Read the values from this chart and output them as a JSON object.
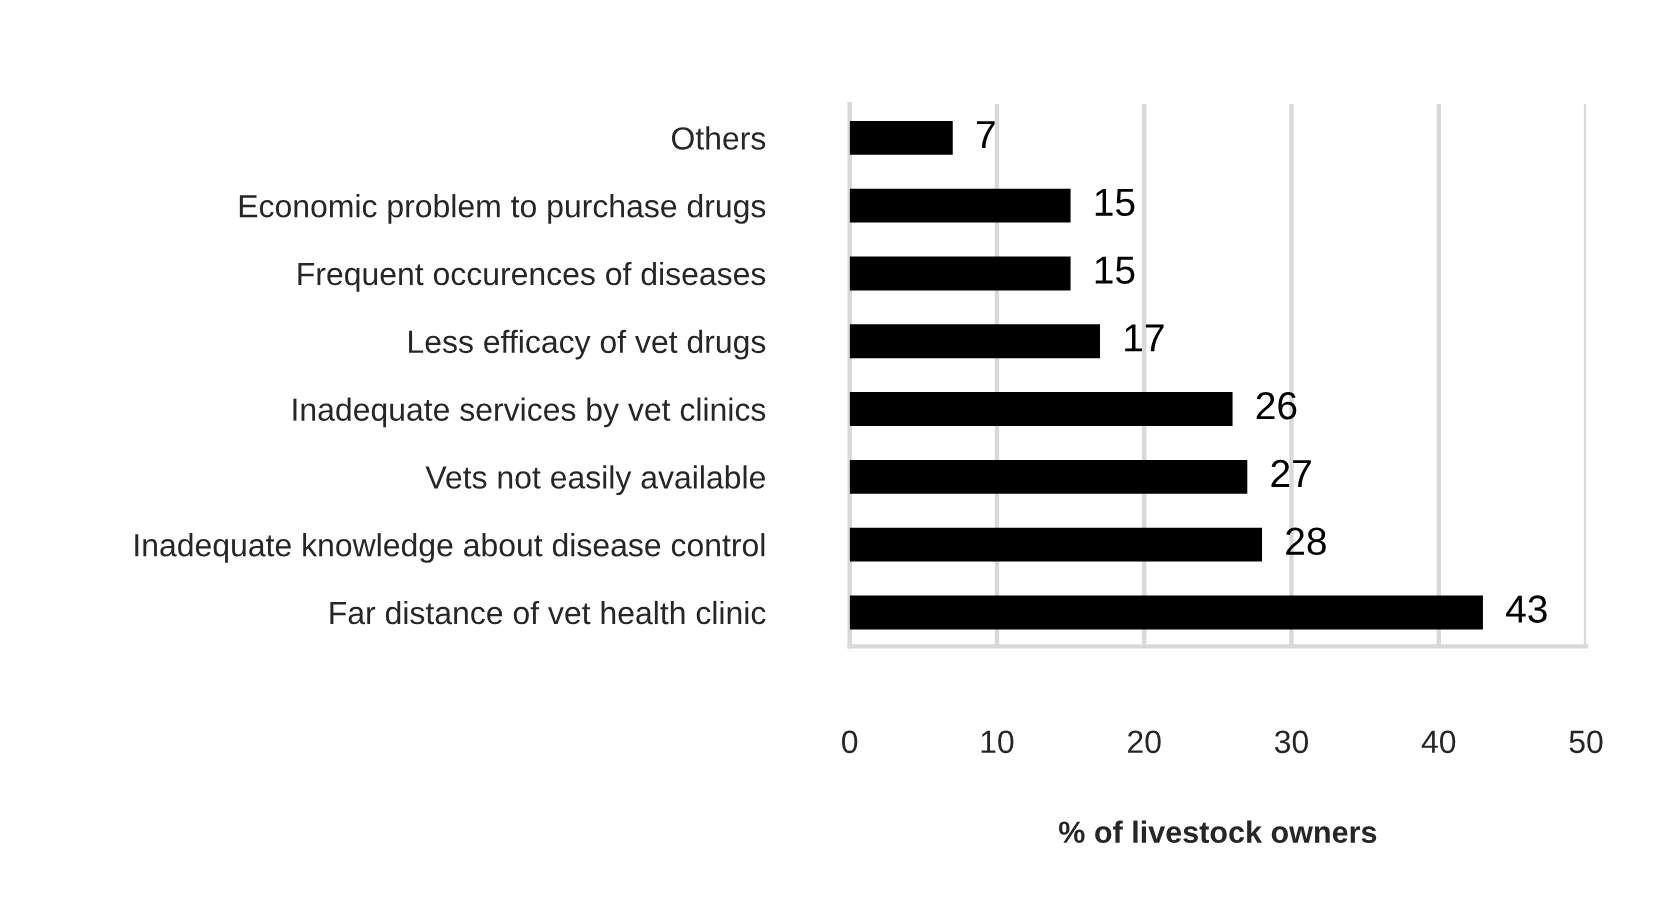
{
  "chart_data": {
    "type": "bar",
    "orientation": "horizontal",
    "categories": [
      "Others",
      "Economic problem to purchase drugs",
      "Frequent occurences of diseases",
      "Less efficacy of vet drugs",
      "Inadequate services by vet clinics",
      "Vets not easily available",
      "Inadequate knowledge about disease control",
      "Far distance of vet health clinic"
    ],
    "values": [
      7,
      15,
      15,
      17,
      26,
      27,
      28,
      43
    ],
    "color": "#000000",
    "xlabel": "% of livestock owners",
    "xlim": [
      0,
      50
    ],
    "xticks": [
      0,
      10,
      20,
      30,
      40,
      50
    ],
    "grid": "x",
    "data_labels": true,
    "legend": false
  }
}
